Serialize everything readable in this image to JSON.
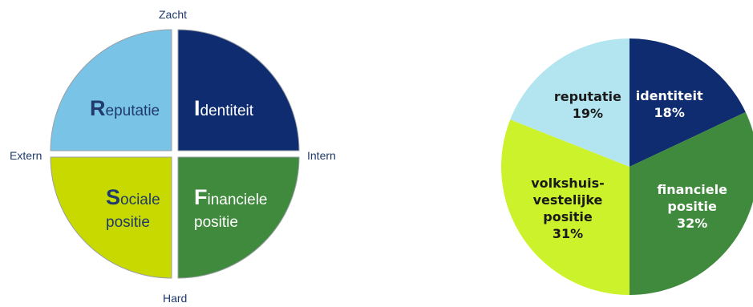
{
  "diagram": {
    "axis": {
      "top": "Zacht",
      "bottom": "Hard",
      "left": "Extern",
      "right": "Intern"
    },
    "quadrants": [
      {
        "id": "reputatie",
        "initial": "R",
        "lines": [
          "eputatie"
        ],
        "color": "#79c4e6",
        "text_color": "#1f3a6b"
      },
      {
        "id": "identiteit",
        "initial": "I",
        "lines": [
          "dentiteit"
        ],
        "color": "#0f2c70",
        "text_color": "#ffffff"
      },
      {
        "id": "sociale",
        "initial": "S",
        "lines": [
          "ociale",
          "positie"
        ],
        "color": "#c8d900",
        "text_color": "#1f3a6b"
      },
      {
        "id": "financiele",
        "initial": "F",
        "lines": [
          "inanciele",
          "positie"
        ],
        "color": "#3f8a3c",
        "text_color": "#ffffff"
      }
    ]
  },
  "chart_data": {
    "type": "pie",
    "slices": [
      {
        "label_lines": [
          "identiteit"
        ],
        "percent_label": "18%",
        "value": 18,
        "color": "#0f2c70",
        "text_color": "#ffffff"
      },
      {
        "label_lines": [
          "financiele",
          "positie"
        ],
        "percent_label": "32%",
        "value": 32,
        "color": "#3f8a3c",
        "text_color": "#ffffff"
      },
      {
        "label_lines": [
          "volkshuis-",
          "vestelijke",
          "positie"
        ],
        "percent_label": "31%",
        "value": 31,
        "color": "#ccf22c",
        "text_color": "#1a1a1a"
      },
      {
        "label_lines": [
          "reputatie"
        ],
        "percent_label": "19%",
        "value": 19,
        "color": "#b3e5f0",
        "text_color": "#1a1a1a"
      }
    ]
  }
}
